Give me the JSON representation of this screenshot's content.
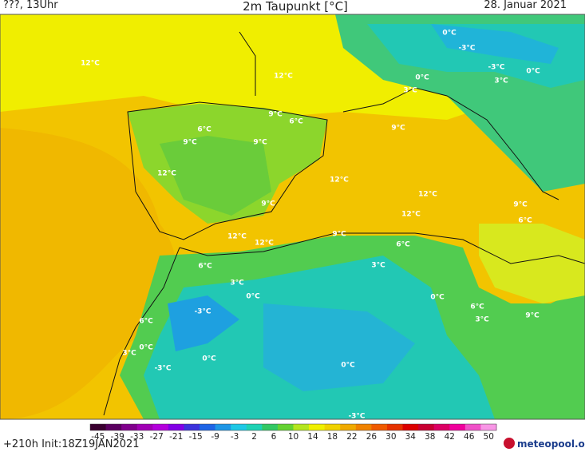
{
  "header": {
    "left": "???, 13Uhr",
    "title": "2m Taupunkt [°C]",
    "date": "28. Januar 2021"
  },
  "contour_labels": [
    "12°C",
    "12°C",
    "-3°C",
    "-3°C",
    "3°C",
    "0°C",
    "0°C",
    "3°C",
    "9°C",
    "6°C",
    "6°C",
    "9°C",
    "9°C",
    "9°C",
    "12°C",
    "12°C",
    "12°C",
    "9°C",
    "12°C",
    "9°C",
    "6°C",
    "12°C",
    "12°C",
    "9°C",
    "6°C",
    "6°C",
    "3°C",
    "3°C",
    "0°C",
    "0°C",
    "-3°C",
    "6°C",
    "3°C",
    "9°C",
    "6°C",
    "0°C",
    "3°C",
    "0°C",
    "-3°C",
    "0°C",
    "-3°C",
    "0°C"
  ],
  "colorbar": {
    "ticks": [
      -45,
      -39,
      -33,
      -27,
      -21,
      -15,
      -9,
      -3,
      2,
      6,
      10,
      14,
      18,
      22,
      26,
      30,
      34,
      38,
      42,
      46,
      50
    ],
    "colors": [
      "#3a0030",
      "#5a0060",
      "#80008c",
      "#a000b4",
      "#b400dc",
      "#8200e6",
      "#3c32dc",
      "#1e64e6",
      "#1e96e6",
      "#1ec8e6",
      "#1ed2b4",
      "#32c864",
      "#64d232",
      "#b4e61e",
      "#f0f000",
      "#f0d200",
      "#f0aa00",
      "#f08200",
      "#f05a00",
      "#e63200",
      "#dc0000",
      "#c80032",
      "#dc0064",
      "#f0009c",
      "#f050c8",
      "#f896e6"
    ]
  },
  "footer": {
    "left": "+210h Init:18Z19JAN2021",
    "logo": "meteopool.org"
  }
}
